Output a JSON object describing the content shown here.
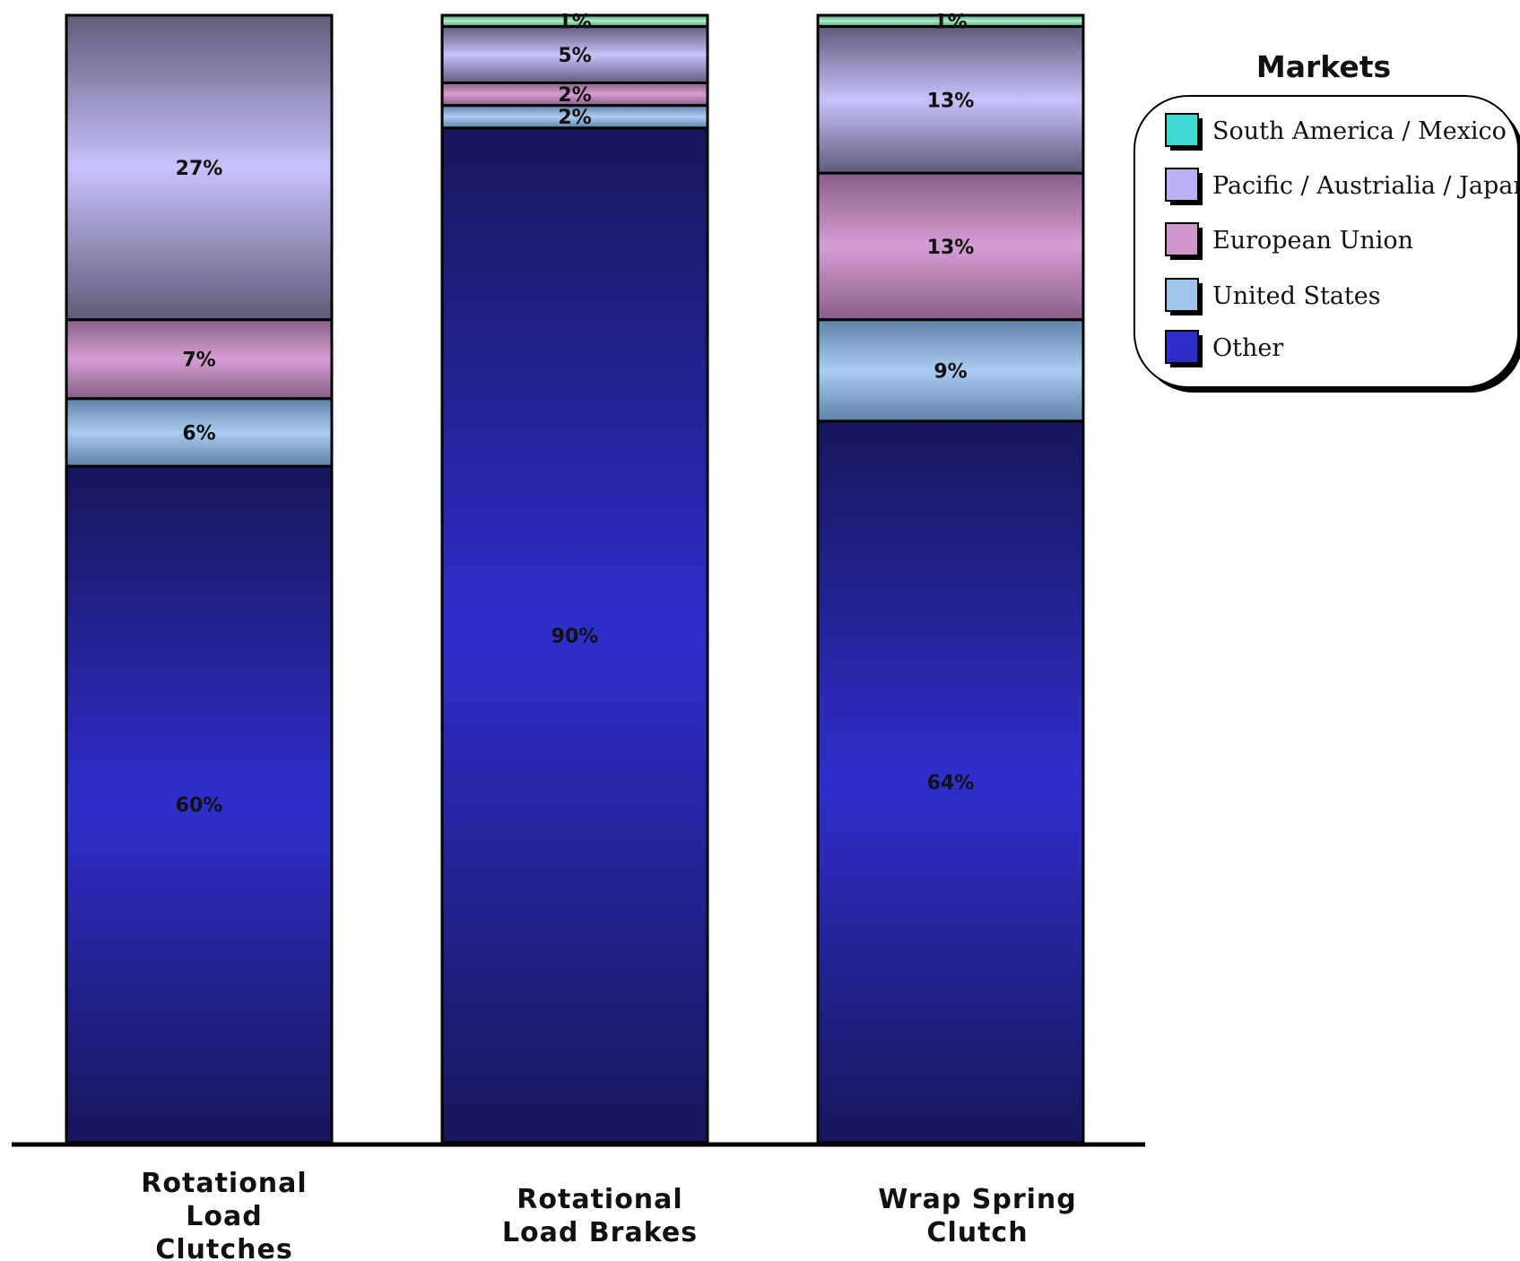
{
  "chart_data": {
    "type": "bar",
    "stacked": true,
    "categories": [
      "Rotational Load Clutches",
      "Rotational Load Brakes",
      "Wrap Spring Clutch"
    ],
    "category_lines": [
      [
        "Rotational",
        "Load",
        "Clutches"
      ],
      [
        "Rotational",
        "Load Brakes"
      ],
      [
        "Wrap Spring",
        "Clutch"
      ]
    ],
    "series": [
      {
        "name": "Other",
        "values": [
          60,
          90,
          64
        ],
        "labels": [
          "60%",
          "90%",
          "64%"
        ],
        "color": "#2f2fcc",
        "dark": "#16165a"
      },
      {
        "name": "United States",
        "values": [
          6,
          2,
          9
        ],
        "labels": [
          "6%",
          "2%",
          "9%"
        ],
        "color": "#a9cdf0",
        "dark": "#5f82a6"
      },
      {
        "name": "European Union",
        "values": [
          7,
          2,
          13
        ],
        "labels": [
          "7%",
          "2%",
          "13%"
        ],
        "color": "#d59ed3",
        "dark": "#8a5f88"
      },
      {
        "name": "Pacific / Austrialia / Japan",
        "values": [
          27,
          5,
          13
        ],
        "labels": [
          "27%",
          "5%",
          "13%"
        ],
        "color": "#c8c2fb",
        "dark": "#5f5c7a"
      },
      {
        "name": "South America / Mexico",
        "values": [
          0,
          1,
          1
        ],
        "labels": [
          "",
          "1%",
          "1%"
        ],
        "color": "#aef0c8",
        "dark": "#4e9a74"
      }
    ],
    "legend": {
      "title": "Markets",
      "placement": "top-right",
      "order": [
        "South America / Mexico",
        "Pacific / Austrialia / Japan",
        "European Union",
        "United States",
        "Other"
      ],
      "swatch_colors": [
        "#3fd9d4",
        "#b9b2f5",
        "#cf97cc",
        "#9ec4ea",
        "#2d2dc8"
      ]
    },
    "ylim": [
      0,
      100
    ],
    "xlabel": "",
    "ylabel": "",
    "grid": false
  }
}
